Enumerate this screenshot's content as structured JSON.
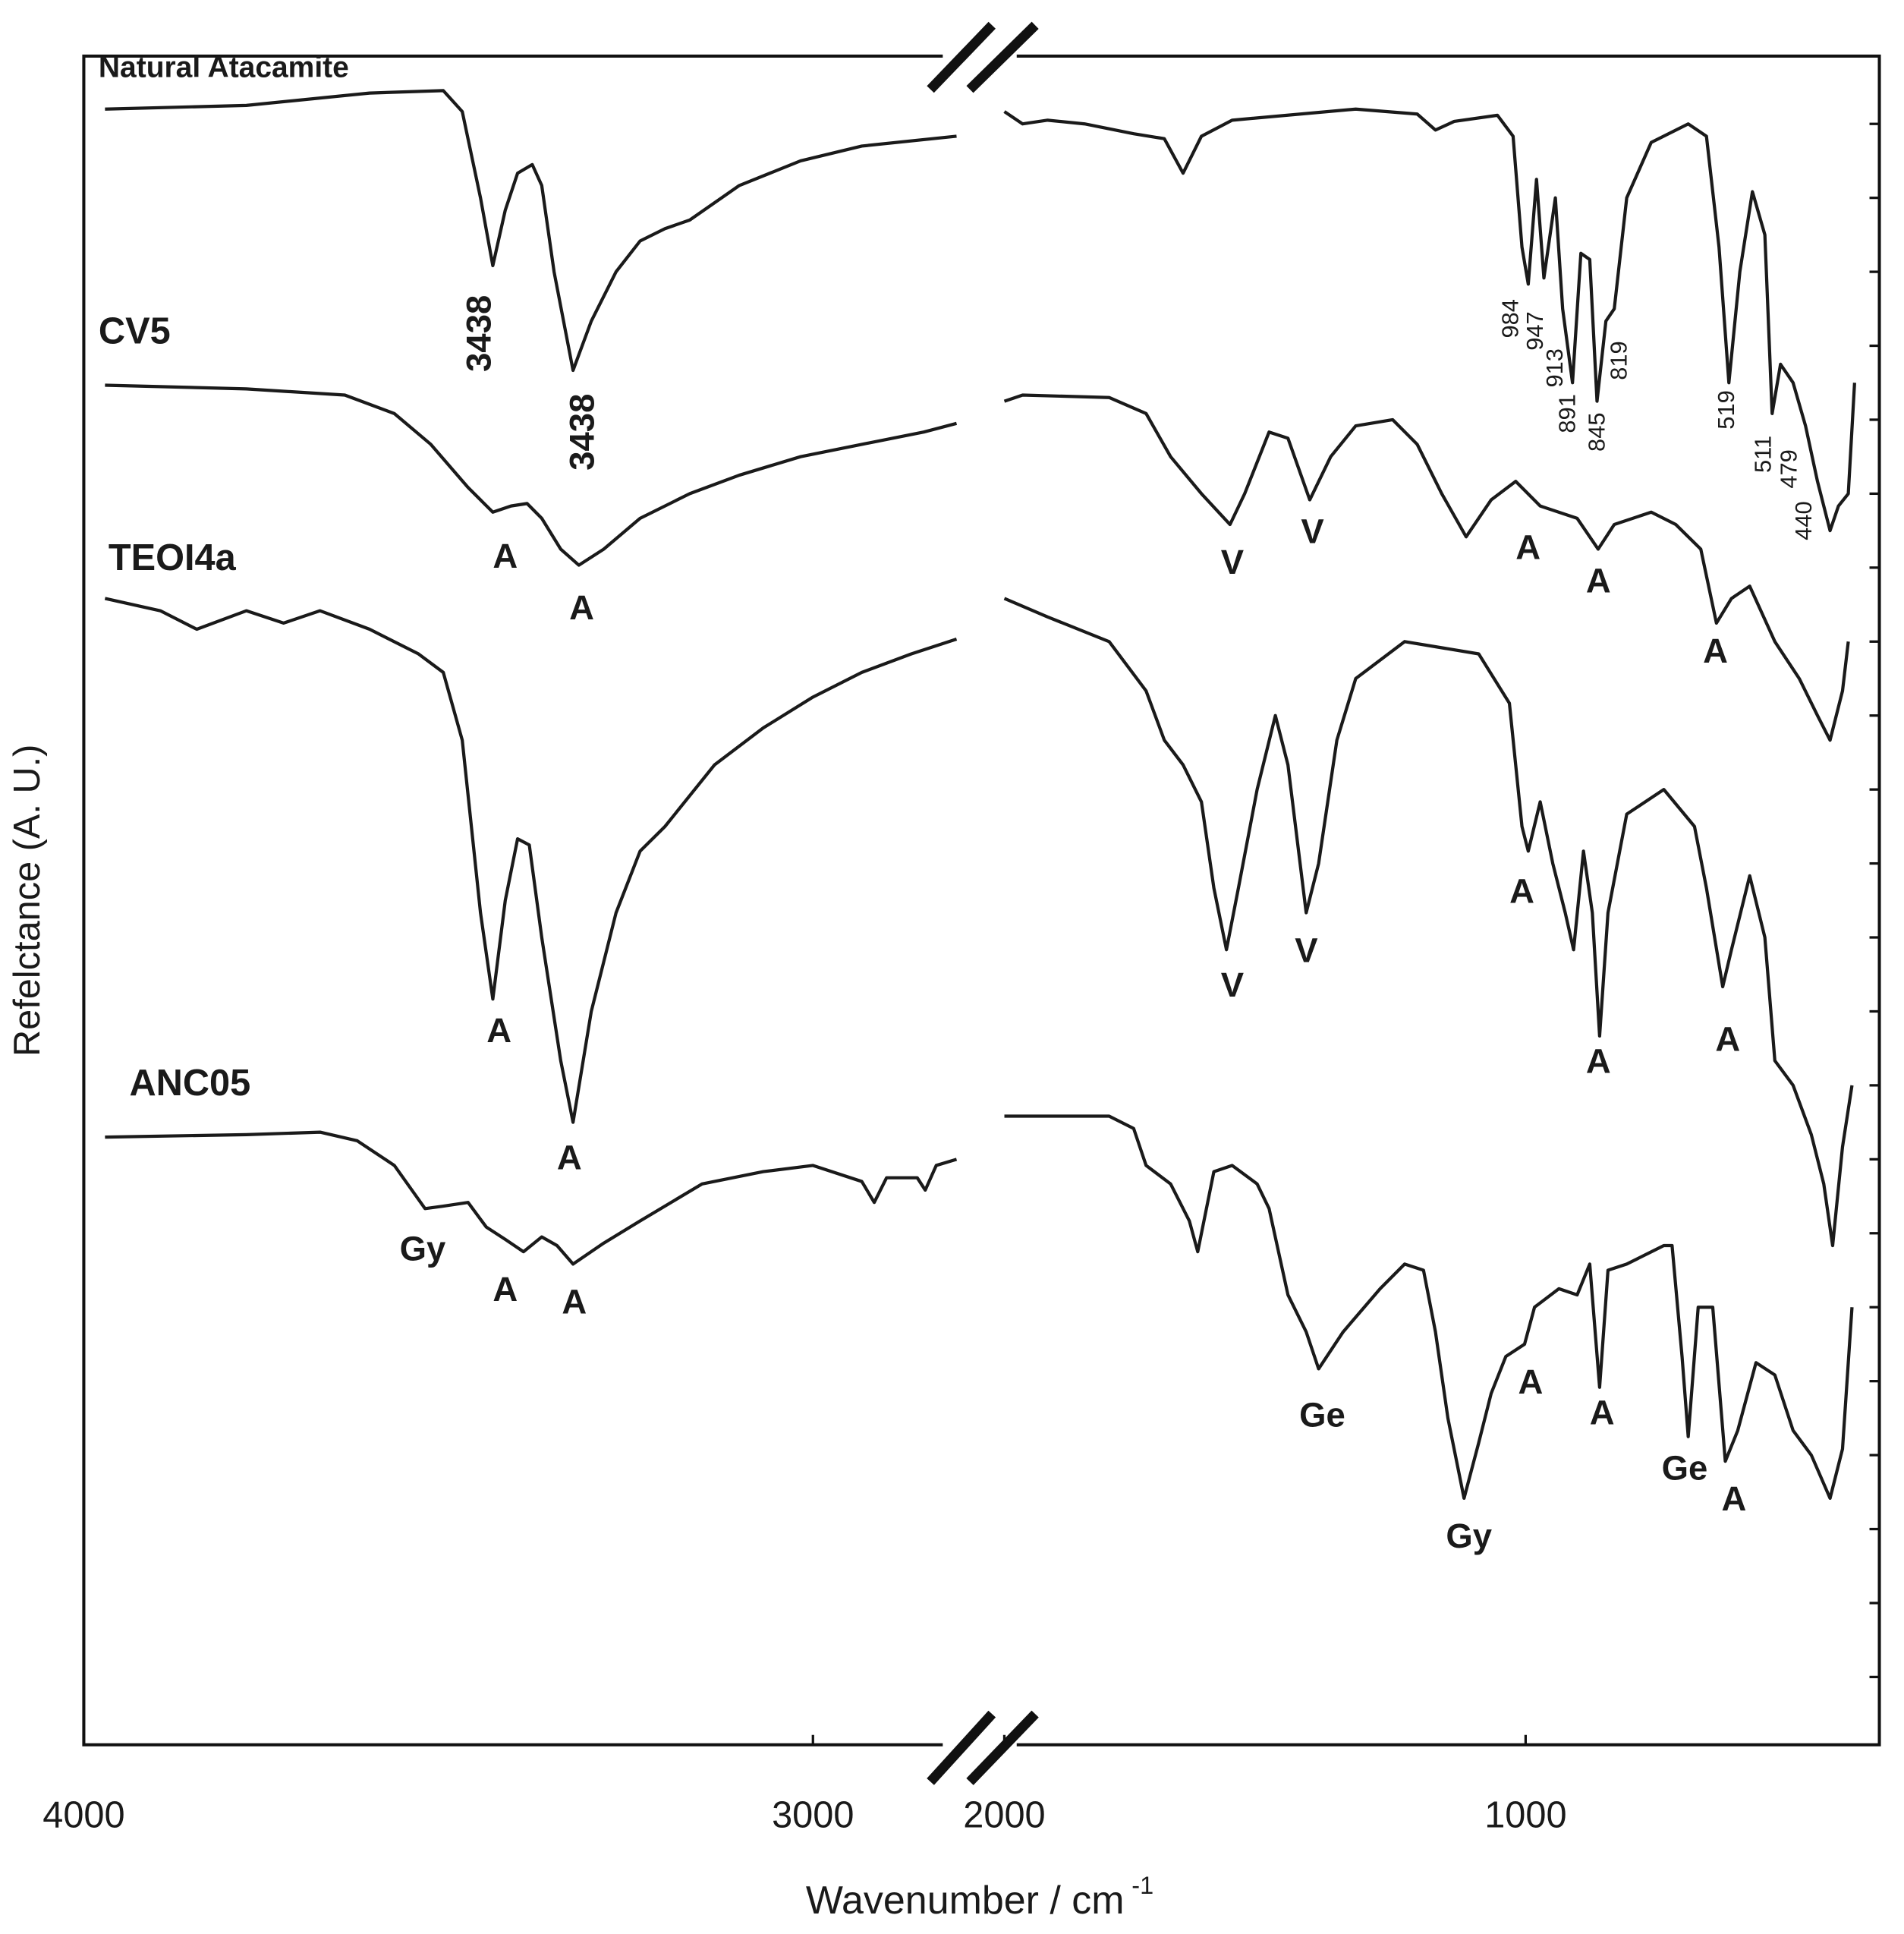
{
  "chart_data": [
    {
      "type": "line",
      "ylabel": "Refelctance (A. U.)",
      "xlabel": "Wavenumber / cm",
      "xlabel_superscript": "-1",
      "xlim": [
        4000,
        2800
      ],
      "xticks": [
        4000,
        3000
      ],
      "ylim": [
        5,
        1375
      ],
      "color": "#1a1a1a",
      "series": [
        {
          "name": "Natural Atacamite",
          "color": "#1a1a1a",
          "x": [
            3971,
            3777,
            3608,
            3507,
            3481,
            3456,
            3439,
            3422,
            3405,
            3385,
            3372,
            3355,
            3329,
            3304,
            3270,
            3237,
            3203,
            3169,
            3101,
            3017,
            2933,
            2803
          ],
          "values": [
            1332,
            1335,
            1345,
            1347,
            1330,
            1260,
            1205,
            1250,
            1280,
            1287,
            1270,
            1200,
            1120,
            1160,
            1200,
            1225,
            1235,
            1242,
            1270,
            1290,
            1302,
            1310
          ]
        },
        {
          "name": "CV5",
          "color": "#1a1a1a",
          "x": [
            3971,
            3777,
            3642,
            3574,
            3524,
            3473,
            3439,
            3414,
            3392,
            3372,
            3346,
            3321,
            3287,
            3237,
            3169,
            3101,
            3017,
            2933,
            2848,
            2803
          ],
          "values": [
            1108,
            1105,
            1100,
            1085,
            1060,
            1025,
            1005,
            1010,
            1012,
            1000,
            975,
            962,
            975,
            1000,
            1020,
            1035,
            1050,
            1060,
            1070,
            1077
          ]
        },
        {
          "name": "TEOI4a",
          "color": "#1a1a1a",
          "x": [
            3971,
            3895,
            3845,
            3777,
            3726,
            3676,
            3608,
            3541,
            3507,
            3481,
            3456,
            3439,
            3422,
            3405,
            3389,
            3372,
            3346,
            3329,
            3304,
            3270,
            3237,
            3203,
            3135,
            3068,
            3000,
            2933,
            2865,
            2803
          ],
          "values": [
            935,
            925,
            910,
            925,
            915,
            925,
            910,
            890,
            875,
            820,
            680,
            610,
            690,
            740,
            735,
            660,
            560,
            510,
            600,
            680,
            730,
            750,
            800,
            830,
            855,
            875,
            890,
            902
          ]
        },
        {
          "name": "ANC05",
          "color": "#1a1a1a",
          "x": [
            3971,
            3777,
            3676,
            3625,
            3574,
            3532,
            3507,
            3473,
            3448,
            3422,
            3397,
            3372,
            3351,
            3329,
            3287,
            3237,
            3152,
            3068,
            3000,
            2933,
            2916,
            2899,
            2857,
            2846,
            2831,
            2803
          ],
          "values": [
            498,
            500,
            502,
            495,
            475,
            440,
            442,
            445,
            425,
            415,
            405,
            417,
            410,
            395,
            412,
            430,
            460,
            470,
            475,
            462,
            445,
            465,
            465,
            455,
            475,
            480
          ]
        }
      ],
      "annotations": [
        "3438",
        "3438",
        "A",
        "A",
        "A",
        "A",
        "Gy",
        "A",
        "A"
      ]
    },
    {
      "type": "line",
      "xlim": [
        2020,
        320
      ],
      "xticks": [
        2000,
        1000
      ],
      "ylim": [
        5,
        1375
      ],
      "yticks": [
        60,
        120,
        180,
        240,
        300,
        360,
        420,
        480,
        540,
        600,
        660,
        720,
        780,
        840,
        900,
        960,
        1020,
        1080,
        1140,
        1200,
        1260,
        1320
      ],
      "series": [
        {
          "color": "#1a1a1a",
          "x": [
            2000,
            1965,
            1917,
            1846,
            1752,
            1693,
            1657,
            1622,
            1563,
            1326,
            1208,
            1173,
            1137,
            1054,
            1024,
            1007,
            995,
            979,
            965,
            943,
            929,
            910,
            894,
            877,
            863,
            846,
            830,
            806,
            759,
            688,
            653,
            629,
            610,
            589,
            565,
            541,
            527,
            511,
            487,
            463,
            440,
            416,
            400,
            381,
            369
          ],
          "values": [
            1330,
            1320,
            1323,
            1320,
            1312,
            1308,
            1280,
            1310,
            1323,
            1332,
            1328,
            1315,
            1322,
            1327,
            1310,
            1220,
            1190,
            1275,
            1195,
            1260,
            1170,
            1110,
            1215,
            1210,
            1095,
            1160,
            1170,
            1260,
            1305,
            1320,
            1310,
            1220,
            1110,
            1200,
            1265,
            1230,
            1085,
            1125,
            1110,
            1075,
            1030,
            990,
            1010,
            1020,
            1110
          ]
        },
        {
          "color": "#1a1a1a",
          "x": [
            2000,
            1965,
            1799,
            1728,
            1681,
            1622,
            1567,
            1539,
            1492,
            1456,
            1414,
            1374,
            1326,
            1255,
            1208,
            1161,
            1114,
            1066,
            1019,
            972,
            901,
            861,
            830,
            759,
            712,
            664,
            634,
            605,
            570,
            522,
            475,
            440,
            416,
            392,
            381
          ],
          "values": [
            1095,
            1100,
            1098,
            1085,
            1050,
            1020,
            995,
            1020,
            1070,
            1065,
            1015,
            1050,
            1075,
            1080,
            1060,
            1020,
            985,
            1015,
            1030,
            1010,
            1000,
            975,
            995,
            1005,
            995,
            975,
            915,
            935,
            945,
            900,
            870,
            840,
            820,
            860,
            900
          ]
        },
        {
          "color": "#1a1a1a",
          "x": [
            2000,
            1917,
            1799,
            1728,
            1693,
            1657,
            1622,
            1598,
            1574,
            1551,
            1515,
            1480,
            1456,
            1421,
            1397,
            1362,
            1326,
            1232,
            1090,
            1031,
            1007,
            995,
            972,
            948,
            924,
            908,
            889,
            872,
            858,
            842,
            806,
            735,
            676,
            653,
            622,
            605,
            570,
            541,
            522,
            487,
            452,
            428,
            411,
            392,
            374
          ],
          "values": [
            935,
            920,
            900,
            860,
            820,
            800,
            770,
            700,
            650,
            700,
            780,
            840,
            800,
            680,
            720,
            820,
            870,
            900,
            890,
            850,
            750,
            730,
            770,
            720,
            680,
            650,
            730,
            680,
            580,
            680,
            760,
            780,
            750,
            700,
            620,
            650,
            710,
            660,
            560,
            540,
            500,
            460,
            410,
            490,
            540
          ]
        },
        {
          "color": "#1a1a1a",
          "x": [
            2000,
            1965,
            1799,
            1752,
            1728,
            1681,
            1645,
            1629,
            1598,
            1563,
            1515,
            1492,
            1456,
            1421,
            1397,
            1350,
            1279,
            1232,
            1196,
            1173,
            1149,
            1118,
            1090,
            1066,
            1038,
            1002,
            983,
            936,
            901,
            877,
            858,
            842,
            806,
            735,
            719,
            700,
            688,
            669,
            641,
            617,
            593,
            558,
            522,
            487,
            452,
            416,
            392,
            374
          ],
          "values": [
            515,
            515,
            515,
            505,
            475,
            460,
            430,
            405,
            470,
            475,
            460,
            440,
            370,
            340,
            310,
            340,
            375,
            395,
            390,
            340,
            270,
            205,
            250,
            290,
            320,
            330,
            360,
            375,
            370,
            395,
            295,
            390,
            395,
            410,
            410,
            320,
            255,
            360,
            360,
            235,
            260,
            315,
            305,
            260,
            240,
            205,
            245,
            360
          ]
        }
      ],
      "annotations": [
        "984",
        "947",
        "913",
        "891",
        "845",
        "819",
        "519",
        "511",
        "479",
        "440",
        "V",
        "V",
        "A",
        "A",
        "A",
        "A",
        "V",
        "V",
        "A",
        "A",
        "Ge",
        "Gy",
        "A",
        "A",
        "Ge",
        "A"
      ]
    }
  ]
}
